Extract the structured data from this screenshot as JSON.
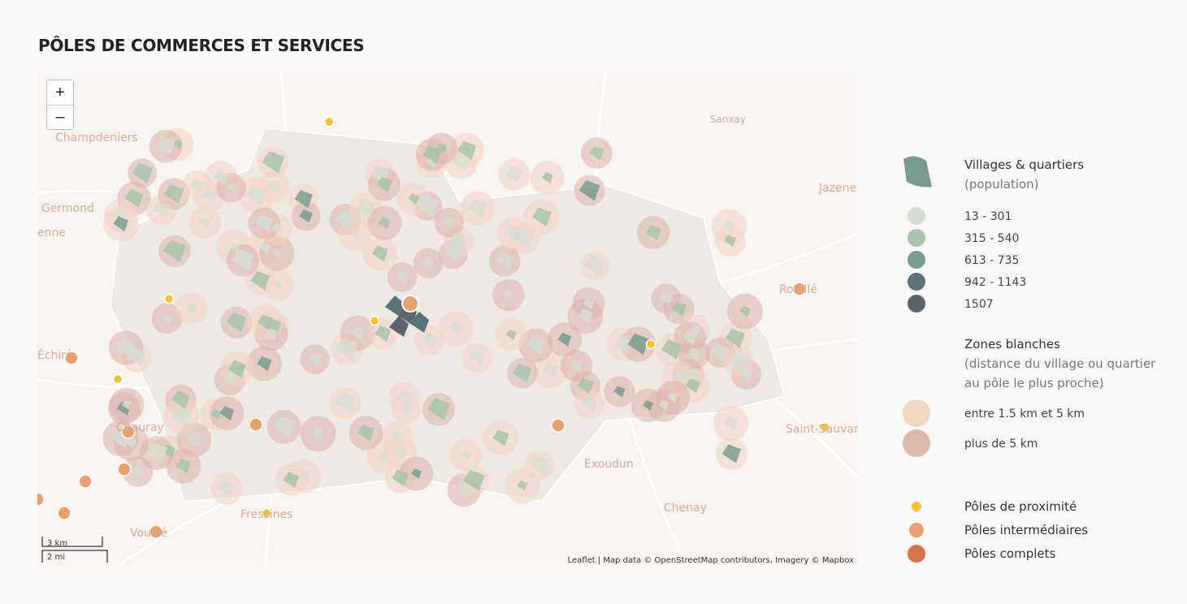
{
  "header": {
    "title": "PÔLES DE COMMERCES ET SERVICES"
  },
  "map": {
    "zoom_in": "+",
    "zoom_out": "–",
    "places": [
      "Champdeniers",
      "Germond",
      "enne",
      "Échiré",
      "Chauray",
      "Vouillé",
      "Fressines",
      "Exoudun",
      "Chenay",
      "Saint-Sauvan",
      "Rouillé",
      "Jazene",
      "Sanxay"
    ],
    "scale": [
      "3 km",
      "2 mi"
    ],
    "attribution": {
      "leaflet": "Leaflet",
      "text": " | Map data © ",
      "osm": "OpenStreetMap",
      "text2": " contributors, Imagery © ",
      "mapbox": "Mapbox"
    }
  },
  "legend": {
    "villages": {
      "title": "Villages & quartiers",
      "subtitle": "(population)",
      "color": "#7a9c90",
      "classes": [
        {
          "label": "13 - 301",
          "color": "#d8dcd6"
        },
        {
          "label": "315 - 540",
          "color": "#a8c4ac"
        },
        {
          "label": "613 - 735",
          "color": "#7a9c90"
        },
        {
          "label": "942 - 1143",
          "color": "#5a7378"
        },
        {
          "label": "1507",
          "color": "#5d6470"
        }
      ]
    },
    "zones": {
      "title": "Zones blanches",
      "subtitle": [
        "(distance du village ou quartier",
        "au pôle le plus proche)"
      ],
      "classes": [
        {
          "label": "entre 1.5 km et 5 km",
          "color": "#f2d6c4"
        },
        {
          "label": "plus de 5 km",
          "color": "#dcb8ab"
        }
      ]
    },
    "poles": [
      {
        "label": "Pôles de proximité",
        "color": "#f4c338"
      },
      {
        "label": "Pôles intermédiaires",
        "color": "#e8a070"
      },
      {
        "label": "Pôles complets",
        "color": "#d8744a"
      }
    ]
  }
}
